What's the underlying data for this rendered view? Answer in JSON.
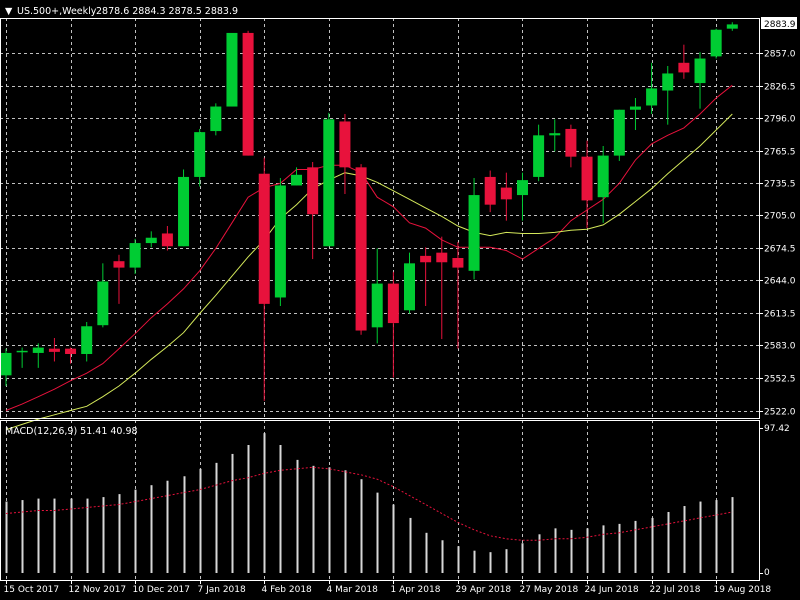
{
  "header": {
    "symbol_timeframe": "US.500+,Weekly",
    "ohlc": "2878.6 2884.3 2878.5 2883.9",
    "current_price": "2883.9"
  },
  "macd": {
    "label": "MACD(12,26,9) 51.41 40.98",
    "ymax_label": "97.42",
    "zero_label": "0"
  },
  "colors": {
    "background": "#000000",
    "grid": "#c0c0c0",
    "bull": "#00cc33",
    "bear": "#e8123c",
    "ma_fast": "#e8123c",
    "ma_slow": "#d4e85a",
    "macd_bar": "#d8d8d8",
    "signal": "#e8123c",
    "text": "#ffffff"
  },
  "chart_data": [
    {
      "type": "candlestick",
      "title": "",
      "y_tick_labels": [
        "2883.9",
        "2857.0",
        "2826.5",
        "2796.0",
        "2765.5",
        "2735.5",
        "2705.0",
        "2674.5",
        "2644.0",
        "2613.5",
        "2583.0",
        "2552.5",
        "2522.0"
      ],
      "x_tick_labels": [
        "15 Oct 2017",
        "12 Nov 2017",
        "10 Dec 2017",
        "7 Jan 2018",
        "4 Feb 2018",
        "4 Mar 2018",
        "1 Apr 2018",
        "29 Apr 2018",
        "27 May 2018",
        "24 Jun 2018",
        "22 Jul 2018",
        "19 Aug 2018"
      ],
      "ylim": [
        2515,
        2890
      ],
      "grid": true,
      "candles": [
        {
          "o": 2555,
          "h": 2580,
          "l": 2545,
          "c": 2576
        },
        {
          "o": 2577,
          "h": 2581,
          "l": 2562,
          "c": 2578
        },
        {
          "o": 2576,
          "h": 2585,
          "l": 2562,
          "c": 2581
        },
        {
          "o": 2580,
          "h": 2590,
          "l": 2568,
          "c": 2577
        },
        {
          "o": 2580,
          "h": 2581,
          "l": 2566,
          "c": 2575
        },
        {
          "o": 2575,
          "h": 2605,
          "l": 2568,
          "c": 2601
        },
        {
          "o": 2602,
          "h": 2660,
          "l": 2600,
          "c": 2643
        },
        {
          "o": 2662,
          "h": 2668,
          "l": 2622,
          "c": 2656
        },
        {
          "o": 2656,
          "h": 2683,
          "l": 2650,
          "c": 2679
        },
        {
          "o": 2679,
          "h": 2690,
          "l": 2675,
          "c": 2684
        },
        {
          "o": 2688,
          "h": 2695,
          "l": 2672,
          "c": 2676
        },
        {
          "o": 2676,
          "h": 2748,
          "l": 2676,
          "c": 2741
        },
        {
          "o": 2741,
          "h": 2786,
          "l": 2732,
          "c": 2783
        },
        {
          "o": 2784,
          "h": 2810,
          "l": 2780,
          "c": 2807
        },
        {
          "o": 2807,
          "h": 2874,
          "l": 2807,
          "c": 2876
        },
        {
          "o": 2876,
          "h": 2878,
          "l": 2761,
          "c": 2761
        },
        {
          "o": 2744,
          "h": 2759,
          "l": 2531,
          "c": 2622
        },
        {
          "o": 2628,
          "h": 2740,
          "l": 2620,
          "c": 2733
        },
        {
          "o": 2733,
          "h": 2750,
          "l": 2733,
          "c": 2743
        },
        {
          "o": 2750,
          "h": 2755,
          "l": 2664,
          "c": 2706
        },
        {
          "o": 2676,
          "h": 2801,
          "l": 2676,
          "c": 2795
        },
        {
          "o": 2793,
          "h": 2800,
          "l": 2725,
          "c": 2750
        },
        {
          "o": 2750,
          "h": 2753,
          "l": 2593,
          "c": 2597
        },
        {
          "o": 2600,
          "h": 2674,
          "l": 2585,
          "c": 2641
        },
        {
          "o": 2641,
          "h": 2652,
          "l": 2553,
          "c": 2604
        },
        {
          "o": 2616,
          "h": 2670,
          "l": 2613,
          "c": 2660
        },
        {
          "o": 2667,
          "h": 2675,
          "l": 2620,
          "c": 2661
        },
        {
          "o": 2670,
          "h": 2685,
          "l": 2589,
          "c": 2661
        },
        {
          "o": 2665,
          "h": 2680,
          "l": 2580,
          "c": 2656
        },
        {
          "o": 2653,
          "h": 2740,
          "l": 2645,
          "c": 2724
        },
        {
          "o": 2741,
          "h": 2747,
          "l": 2708,
          "c": 2715
        },
        {
          "o": 2731,
          "h": 2745,
          "l": 2700,
          "c": 2720
        },
        {
          "o": 2724,
          "h": 2745,
          "l": 2700,
          "c": 2738
        },
        {
          "o": 2741,
          "h": 2790,
          "l": 2737,
          "c": 2780
        },
        {
          "o": 2780,
          "h": 2795,
          "l": 2765,
          "c": 2782
        },
        {
          "o": 2786,
          "h": 2790,
          "l": 2750,
          "c": 2760
        },
        {
          "o": 2760,
          "h": 2775,
          "l": 2693,
          "c": 2719
        },
        {
          "o": 2722,
          "h": 2770,
          "l": 2698,
          "c": 2761
        },
        {
          "o": 2761,
          "h": 2804,
          "l": 2756,
          "c": 2804
        },
        {
          "o": 2804,
          "h": 2815,
          "l": 2785,
          "c": 2807
        },
        {
          "o": 2808,
          "h": 2848,
          "l": 2800,
          "c": 2824
        },
        {
          "o": 2822,
          "h": 2845,
          "l": 2790,
          "c": 2838
        },
        {
          "o": 2848,
          "h": 2865,
          "l": 2833,
          "c": 2839
        },
        {
          "o": 2829,
          "h": 2858,
          "l": 2805,
          "c": 2852
        },
        {
          "o": 2854,
          "h": 2880,
          "l": 2852,
          "c": 2879
        },
        {
          "o": 2880,
          "h": 2886,
          "l": 2878,
          "c": 2884
        }
      ],
      "series": [
        {
          "values": [
            2522,
            2528,
            2535,
            2542,
            2550,
            2557,
            2566,
            2580,
            2594,
            2609,
            2622,
            2636,
            2653,
            2674,
            2698,
            2722,
            2731,
            2735,
            2748,
            2748,
            2752,
            2752,
            2745,
            2722,
            2713,
            2698,
            2693,
            2682,
            2675,
            2675,
            2675,
            2672,
            2664,
            2674,
            2684,
            2700,
            2710,
            2720,
            2735,
            2757,
            2772,
            2780,
            2787,
            2800,
            2815,
            2827
          ]
        },
        {
          "values": [
            2504,
            2509,
            2514,
            2518,
            2522,
            2526,
            2535,
            2545,
            2557,
            2570,
            2582,
            2595,
            2613,
            2630,
            2648,
            2666,
            2682,
            2702,
            2715,
            2730,
            2738,
            2745,
            2742,
            2736,
            2728,
            2720,
            2712,
            2704,
            2695,
            2689,
            2686,
            2689,
            2688,
            2688,
            2689,
            2691,
            2692,
            2696,
            2706,
            2718,
            2730,
            2744,
            2757,
            2770,
            2785,
            2800
          ]
        }
      ]
    },
    {
      "type": "bar",
      "title": "MACD(12,26,9)",
      "ylim": [
        0,
        97.42
      ],
      "series": [
        {
          "values": [
            48,
            49,
            50,
            50,
            50,
            50,
            51,
            53,
            56,
            59,
            62,
            65,
            70,
            74,
            80,
            86,
            94,
            86,
            76,
            72,
            71,
            69,
            63,
            54,
            46,
            37,
            27,
            22,
            18,
            15,
            14,
            16,
            20,
            26,
            30,
            29,
            30,
            32,
            33,
            35,
            37,
            41,
            45,
            48,
            49,
            51
          ]
        },
        {
          "values": [
            40,
            41,
            42,
            42,
            43,
            44,
            45,
            46,
            48,
            50,
            52,
            54,
            56,
            59,
            62,
            64,
            67,
            69,
            70,
            71,
            70,
            68,
            66,
            63,
            58,
            52,
            46,
            40,
            34,
            29,
            25,
            23,
            22,
            22,
            23,
            23,
            24,
            26,
            27,
            29,
            31,
            33,
            35,
            37,
            39,
            41
          ]
        }
      ]
    }
  ]
}
